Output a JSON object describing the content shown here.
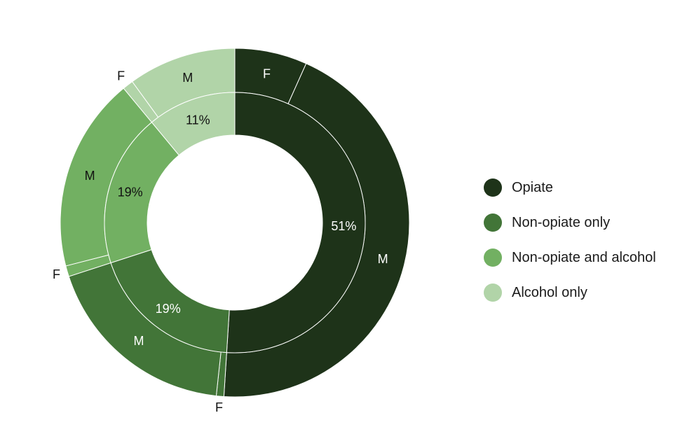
{
  "chart_data": {
    "type": "pie",
    "subtype": "nested-donut",
    "title": "",
    "categories": [
      "Opiate",
      "Non-opiate only",
      "Non-opiate and alcohol",
      "Alcohol only"
    ],
    "colors": [
      "#1e3319",
      "#427538",
      "#72b062",
      "#b1d4a8"
    ],
    "inner_ring": {
      "values": [
        51,
        19,
        19,
        11
      ],
      "labels": [
        "51%",
        "19%",
        "19%",
        "11%"
      ]
    },
    "outer_ring": {
      "segments": [
        {
          "category": "Opiate",
          "sex": "F",
          "value": 6.7
        },
        {
          "category": "Opiate",
          "sex": "M",
          "value": 44.3
        },
        {
          "category": "Non-opiate only",
          "sex": "F",
          "value": 0.7
        },
        {
          "category": "Non-opiate only",
          "sex": "M",
          "value": 18.3
        },
        {
          "category": "Non-opiate and alcohol",
          "sex": "F",
          "value": 1.0
        },
        {
          "category": "Non-opiate and alcohol",
          "sex": "M",
          "value": 18.0
        },
        {
          "category": "Alcohol only",
          "sex": "F",
          "value": 1.0
        },
        {
          "category": "Alcohol only",
          "sex": "M",
          "value": 10.0
        }
      ]
    },
    "legend": {
      "position": "right",
      "items": [
        "Opiate",
        "Non-opiate only",
        "Non-opiate and alcohol",
        "Alcohol only"
      ]
    }
  }
}
